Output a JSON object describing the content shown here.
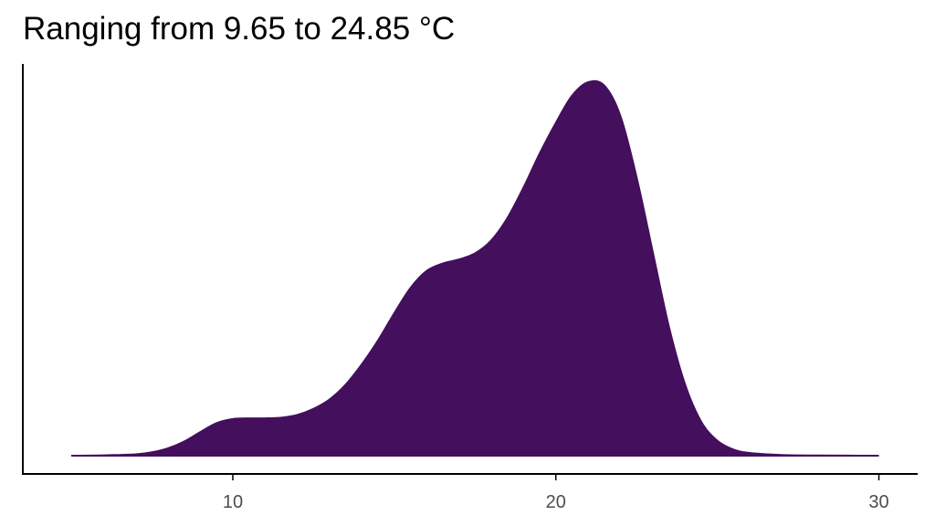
{
  "chart_data": {
    "type": "area",
    "title": "Ranging from 9.65 to 24.85 °C",
    "xlabel": "",
    "ylabel": "",
    "xlim": [
      3.5,
      31.2
    ],
    "xticks": [
      10,
      20,
      30
    ],
    "y_axis_ticks_shown": false,
    "grid": false,
    "legend": "none",
    "fill_color": "#440F5C",
    "axis_color": "#000000",
    "series": [
      {
        "x": [
          5,
          6,
          7,
          7.5,
          8,
          8.5,
          9,
          9.5,
          10,
          10.5,
          11,
          11.5,
          12,
          12.5,
          13,
          13.5,
          14,
          14.5,
          15,
          15.5,
          16,
          16.5,
          17,
          17.5,
          18,
          18.5,
          19,
          19.5,
          20,
          20.5,
          21,
          21.5,
          22,
          22.5,
          23,
          23.5,
          24,
          24.5,
          25,
          25.5,
          26,
          27,
          28,
          29,
          30
        ],
        "density": [
          0.0,
          0.0005,
          0.002,
          0.005,
          0.011,
          0.021,
          0.035,
          0.048,
          0.054,
          0.055,
          0.055,
          0.056,
          0.06,
          0.069,
          0.083,
          0.105,
          0.135,
          0.17,
          0.21,
          0.247,
          0.272,
          0.283,
          0.289,
          0.298,
          0.317,
          0.35,
          0.395,
          0.445,
          0.49,
          0.53,
          0.55,
          0.545,
          0.5,
          0.41,
          0.3,
          0.19,
          0.105,
          0.05,
          0.022,
          0.009,
          0.004,
          0.001,
          0.0003,
          0.0001,
          0.0
        ]
      }
    ]
  }
}
